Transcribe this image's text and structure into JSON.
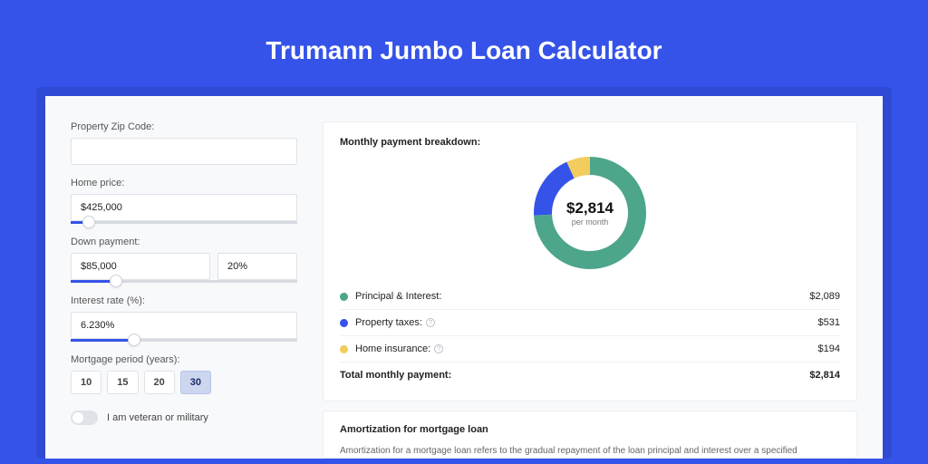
{
  "page": {
    "title": "Trumann Jumbo Loan Calculator",
    "background_color": "#3553e8",
    "holder_background": "#2f4ad4",
    "card_background": "#f8f9fb",
    "panel_background": "#ffffff"
  },
  "form": {
    "zip": {
      "label": "Property Zip Code:",
      "value": ""
    },
    "home_price": {
      "label": "Home price:",
      "value": "$425,000",
      "slider_percent": 8
    },
    "down_payment": {
      "label": "Down payment:",
      "amount": "$85,000",
      "percent": "20%",
      "slider_percent": 20
    },
    "interest_rate": {
      "label": "Interest rate (%):",
      "value": "6.230%",
      "slider_percent": 28
    },
    "mortgage_period": {
      "label": "Mortgage period (years):",
      "options": [
        "10",
        "15",
        "20",
        "30"
      ],
      "selected": "30"
    },
    "veteran": {
      "label": "I am veteran or military",
      "checked": false
    }
  },
  "breakdown": {
    "title": "Monthly payment breakdown:",
    "center_amount": "$2,814",
    "center_sub": "per month",
    "donut": {
      "segments": [
        {
          "label": "Principal & Interest:",
          "value": "$2,089",
          "numeric": 2089,
          "color": "#4da58b"
        },
        {
          "label": "Property taxes:",
          "value": "$531",
          "numeric": 531,
          "color": "#3553e8",
          "info": true
        },
        {
          "label": "Home insurance:",
          "value": "$194",
          "numeric": 194,
          "color": "#f2cc5d",
          "info": true
        }
      ],
      "thickness": 20,
      "radius": 52
    },
    "total": {
      "label": "Total monthly payment:",
      "value": "$2,814"
    }
  },
  "amortization": {
    "title": "Amortization for mortgage loan",
    "text": "Amortization for a mortgage loan refers to the gradual repayment of the loan principal and interest over a specified"
  }
}
